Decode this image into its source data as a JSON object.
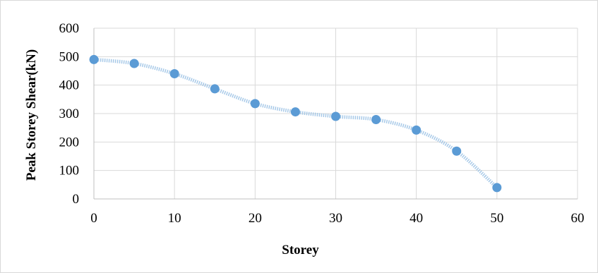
{
  "chart_data": {
    "type": "scatter",
    "title": "",
    "xlabel": "Storey",
    "ylabel": "Peak Storey Shear(kN)",
    "xlim": [
      0,
      60
    ],
    "ylim": [
      0,
      600
    ],
    "x_ticks": [
      0,
      10,
      20,
      30,
      40,
      50,
      60
    ],
    "y_ticks": [
      0,
      100,
      200,
      300,
      400,
      500,
      600
    ],
    "grid": {
      "horizontal": true,
      "vertical": true
    },
    "legend": "none",
    "trendline": "smooth dotted",
    "series": [
      {
        "x": [
          0,
          5,
          10,
          15,
          20,
          25,
          30,
          35,
          40,
          45,
          50
        ],
        "y": [
          490,
          476,
          440,
          387,
          335,
          306,
          290,
          279,
          242,
          168,
          40
        ]
      }
    ],
    "colors": {
      "marker": "#5b9bd5",
      "trendline": "#9dc3e6",
      "grid": "#d9d9d9",
      "border": "#d9d9d9",
      "background": "#ffffff"
    }
  }
}
